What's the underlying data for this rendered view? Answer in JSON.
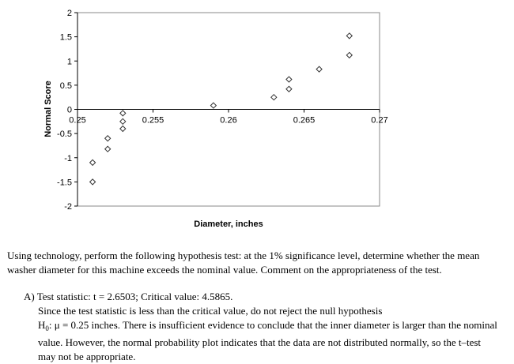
{
  "chart_data": {
    "type": "scatter",
    "xlabel": "Diameter, inches",
    "ylabel": "Normal Score",
    "xlim": [
      0.25,
      0.27
    ],
    "ylim": [
      -2,
      2
    ],
    "x_ticks": [
      "0.25",
      "0.255",
      "0.26",
      "0.265",
      "0.27"
    ],
    "y_ticks": [
      "2",
      "1.5",
      "1",
      "0.5",
      "0",
      "-0.5",
      "-1",
      "-1.5",
      "-2"
    ],
    "grid": false,
    "marker": "diamond",
    "points": [
      {
        "x": 0.251,
        "y": -1.5
      },
      {
        "x": 0.251,
        "y": -1.1
      },
      {
        "x": 0.252,
        "y": -0.82
      },
      {
        "x": 0.252,
        "y": -0.6
      },
      {
        "x": 0.253,
        "y": -0.4
      },
      {
        "x": 0.253,
        "y": -0.25
      },
      {
        "x": 0.253,
        "y": -0.08
      },
      {
        "x": 0.259,
        "y": 0.08
      },
      {
        "x": 0.263,
        "y": 0.25
      },
      {
        "x": 0.264,
        "y": 0.42
      },
      {
        "x": 0.264,
        "y": 0.62
      },
      {
        "x": 0.266,
        "y": 0.83
      },
      {
        "x": 0.268,
        "y": 1.12
      },
      {
        "x": 0.268,
        "y": 1.52
      }
    ]
  },
  "question": "Using technology, perform the following hypothesis test: at the 1% significance level, determine whether the mean washer diameter for this machine exceeds the nominal value. Comment on the appropriateness of the test.",
  "answer": {
    "label": "A)",
    "stats": "Test statistic: t = 2.6503; Critical value: 4.5865.",
    "line1": "Since the test statistic is less than the critical value, do not reject the null hypothesis",
    "h0_h": "H",
    "h0_sub": "0",
    "h0_rest": ": μ = 0.25 inches. There is insufficient evidence to conclude that the inner diameter is larger than the  nominal value. However, the normal probability plot indicates that the data are not distributed normally, so the t–test may not be appropriate."
  }
}
